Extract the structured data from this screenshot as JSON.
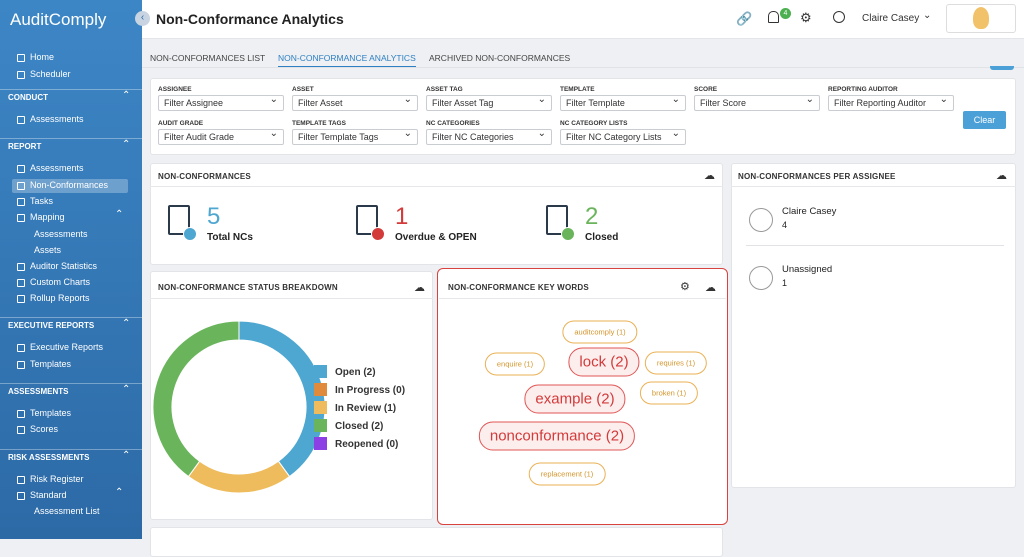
{
  "brand": "AuditComply",
  "page_title": "Non-Conformance Analytics",
  "header": {
    "notification_count": "4",
    "user": "Claire Casey"
  },
  "sidebar": {
    "top": [
      "Home",
      "Scheduler"
    ],
    "groups": [
      {
        "title": "CONDUCT",
        "items": [
          {
            "label": "Assessments"
          }
        ]
      },
      {
        "title": "REPORT",
        "items": [
          {
            "label": "Assessments"
          },
          {
            "label": "Non-Conformances",
            "active": true
          },
          {
            "label": "Tasks"
          },
          {
            "label": "Mapping",
            "children": [
              "Assessments",
              "Assets"
            ]
          },
          {
            "label": "Auditor Statistics"
          },
          {
            "label": "Custom Charts"
          },
          {
            "label": "Rollup Reports"
          }
        ]
      },
      {
        "title": "EXECUTIVE REPORTS",
        "items": [
          {
            "label": "Executive Reports"
          },
          {
            "label": "Templates"
          }
        ]
      },
      {
        "title": "ASSESSMENTS",
        "items": [
          {
            "label": "Templates"
          },
          {
            "label": "Scores"
          }
        ]
      },
      {
        "title": "RISK ASSESSMENTS",
        "items": [
          {
            "label": "Risk Register"
          },
          {
            "label": "Standard",
            "children": [
              "Assessment List"
            ]
          }
        ]
      }
    ]
  },
  "tabs": [
    {
      "label": "NON-CONFORMANCES LIST"
    },
    {
      "label": "NON-CONFORMANCE ANALYTICS",
      "active": true
    },
    {
      "label": "ARCHIVED NON-CONFORMANCES"
    }
  ],
  "filters": [
    {
      "label": "ASSIGNEE",
      "placeholder": "Filter Assignee"
    },
    {
      "label": "ASSET",
      "placeholder": "Filter Asset"
    },
    {
      "label": "ASSET TAG",
      "placeholder": "Filter Asset Tag"
    },
    {
      "label": "TEMPLATE",
      "placeholder": "Filter Template"
    },
    {
      "label": "SCORE",
      "placeholder": "Filter Score"
    },
    {
      "label": "REPORTING AUDITOR",
      "placeholder": "Filter Reporting Auditor"
    },
    {
      "label": "AUDIT GRADE",
      "placeholder": "Filter Audit Grade"
    },
    {
      "label": "TEMPLATE TAGS",
      "placeholder": "Filter Template Tags"
    },
    {
      "label": "NC CATEGORIES",
      "placeholder": "Filter NC Categories"
    },
    {
      "label": "NC CATEGORY LISTS",
      "placeholder": "Filter NC Category Lists"
    }
  ],
  "clear_button": "Clear",
  "nc_card": {
    "title": "NON-CONFORMANCES",
    "stats": [
      {
        "value": "5",
        "label": "Total NCs"
      },
      {
        "value": "1",
        "label": "Overdue & OPEN"
      },
      {
        "value": "2",
        "label": "Closed"
      }
    ]
  },
  "assignee_card": {
    "title": "NON-CONFORMANCES PER ASSIGNEE",
    "rows": [
      {
        "name": "Claire Casey",
        "count": "4"
      },
      {
        "name": "Unassigned",
        "count": "1"
      }
    ]
  },
  "status_card": {
    "title": "NON-CONFORMANCE STATUS BREAKDOWN",
    "chart": {
      "type": "donut",
      "series": [
        {
          "name": "Open (2)",
          "value": 2,
          "color": "#4ea7d0"
        },
        {
          "name": "In Progress (0)",
          "value": 0,
          "color": "#e08b3c"
        },
        {
          "name": "In Review (1)",
          "value": 1,
          "color": "#eebc5c"
        },
        {
          "name": "Closed (2)",
          "value": 2,
          "color": "#6ab55c"
        },
        {
          "name": "Reopened (0)",
          "value": 0,
          "color": "#8d3fe6"
        }
      ]
    }
  },
  "keywords_card": {
    "title": "NON-CONFORMANCE KEY WORDS",
    "words": [
      {
        "label": "auditcomply (1)",
        "count": 1
      },
      {
        "label": "enquire (1)",
        "count": 1
      },
      {
        "label": "lock (2)",
        "count": 2
      },
      {
        "label": "requires (1)",
        "count": 1
      },
      {
        "label": "example (2)",
        "count": 2
      },
      {
        "label": "broken (1)",
        "count": 1
      },
      {
        "label": "nonconformance (2)",
        "count": 2
      },
      {
        "label": "replacement (1)",
        "count": 1
      }
    ]
  }
}
